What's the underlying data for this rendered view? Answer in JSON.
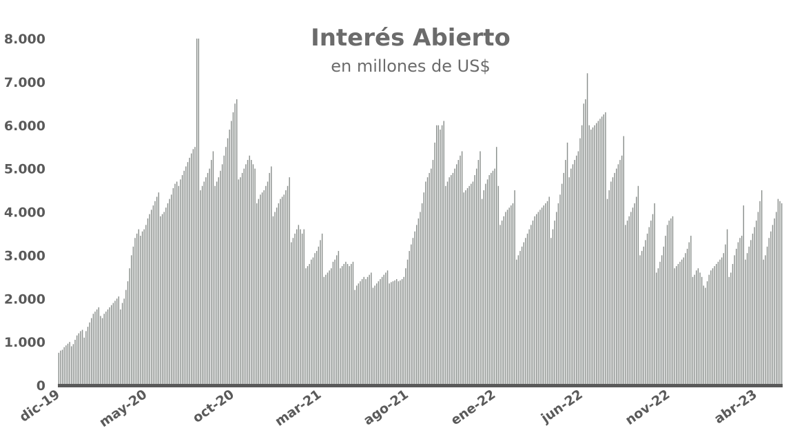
{
  "chart_data": {
    "type": "bar",
    "title": "Interés Abierto",
    "subtitle": "en millones de US$",
    "xlabel": "",
    "ylabel": "",
    "ylim": [
      0,
      8000
    ],
    "grid": false,
    "legend": "none",
    "bar_color": "#8a8f8c",
    "axis_color": "#595959",
    "text_color": "#6b6b6b",
    "y_ticks": [
      {
        "value": 0,
        "label": "0"
      },
      {
        "value": 1000,
        "label": "1.000"
      },
      {
        "value": 2000,
        "label": "2.000"
      },
      {
        "value": 3000,
        "label": "3.000"
      },
      {
        "value": 4000,
        "label": "4.000"
      },
      {
        "value": 5000,
        "label": "5.000"
      },
      {
        "value": 6000,
        "label": "6.000"
      },
      {
        "value": 7000,
        "label": "7.000"
      },
      {
        "value": 8000,
        "label": "8.000"
      }
    ],
    "x_tick_labels": [
      "dic-19",
      "may-20",
      "oct-20",
      "mar-21",
      "ago-21",
      "ene-22",
      "jun-22",
      "nov-22",
      "abr-23"
    ],
    "series": [
      {
        "values": [
          750,
          800,
          820,
          880,
          920,
          960,
          1000,
          900,
          950,
          1050,
          1150,
          1200,
          1250,
          1280,
          1100,
          1250,
          1350,
          1450,
          1550,
          1650,
          1700,
          1750,
          1800,
          1600,
          1550,
          1650,
          1700,
          1750,
          1800,
          1850,
          1900,
          1950,
          2000,
          2050,
          1750,
          1900,
          2000,
          2200,
          2400,
          2700,
          3000,
          3200,
          3400,
          3500,
          3600,
          3450,
          3550,
          3600,
          3700,
          3850,
          3950,
          4050,
          4150,
          4250,
          4350,
          4450,
          3900,
          3950,
          4000,
          4100,
          4200,
          4300,
          4400,
          4550,
          4650,
          4700,
          4600,
          4750,
          4850,
          4950,
          5050,
          5150,
          5250,
          5350,
          5450,
          5500,
          8000,
          8000,
          4500,
          4600,
          4700,
          4800,
          4900,
          5000,
          5200,
          5400,
          4600,
          4700,
          4800,
          4950,
          5100,
          5300,
          5500,
          5700,
          5900,
          6100,
          6300,
          6500,
          6600,
          4750,
          4800,
          4900,
          5000,
          5100,
          5200,
          5300,
          5200,
          5100,
          5000,
          4200,
          4300,
          4400,
          4450,
          4500,
          4600,
          4700,
          4900,
          5050,
          3900,
          4000,
          4100,
          4200,
          4300,
          4350,
          4400,
          4500,
          4600,
          4800,
          3300,
          3400,
          3500,
          3600,
          3700,
          3600,
          3500,
          3600,
          2700,
          2750,
          2800,
          2900,
          2950,
          3050,
          3100,
          3200,
          3350,
          3500,
          2500,
          2550,
          2600,
          2650,
          2700,
          2850,
          2900,
          3000,
          3100,
          2700,
          2750,
          2800,
          2850,
          2800,
          2750,
          2800,
          2850,
          2200,
          2300,
          2350,
          2400,
          2450,
          2500,
          2450,
          2500,
          2550,
          2600,
          2250,
          2300,
          2350,
          2400,
          2450,
          2500,
          2550,
          2600,
          2650,
          2350,
          2380,
          2400,
          2420,
          2450,
          2400,
          2420,
          2450,
          2500,
          2700,
          2900,
          3100,
          3250,
          3400,
          3550,
          3700,
          3850,
          4000,
          4200,
          4450,
          4700,
          4800,
          4900,
          5000,
          5200,
          5600,
          6000,
          6000,
          5900,
          6000,
          6100,
          4600,
          4700,
          4800,
          4850,
          4900,
          5000,
          5100,
          5200,
          5300,
          5400,
          4450,
          4500,
          4550,
          4600,
          4650,
          4700,
          4850,
          5000,
          5200,
          5400,
          4300,
          4500,
          4650,
          4750,
          4850,
          4900,
          4950,
          5000,
          5500,
          4600,
          3700,
          3800,
          3900,
          4000,
          4050,
          4100,
          4150,
          4200,
          4500,
          2900,
          3000,
          3100,
          3200,
          3300,
          3400,
          3500,
          3600,
          3700,
          3800,
          3900,
          3950,
          4000,
          4050,
          4100,
          4150,
          4200,
          4250,
          4350,
          3400,
          3600,
          3800,
          4000,
          4200,
          4400,
          4650,
          4900,
          5200,
          5600,
          4800,
          5000,
          5100,
          5200,
          5300,
          5400,
          5700,
          6000,
          6500,
          6600,
          7200,
          6000,
          5900,
          5950,
          6000,
          6050,
          6100,
          6150,
          6200,
          6250,
          6300,
          4300,
          4500,
          4700,
          4800,
          4900,
          5000,
          5100,
          5200,
          5300,
          5750,
          3700,
          3800,
          3900,
          4000,
          4100,
          4200,
          4350,
          4600,
          3000,
          3100,
          3200,
          3350,
          3500,
          3650,
          3800,
          3950,
          4200,
          2600,
          2700,
          2850,
          3000,
          3200,
          3450,
          3700,
          3800,
          3850,
          3900,
          2700,
          2750,
          2800,
          2850,
          2900,
          2950,
          3050,
          3150,
          3300,
          3450,
          2500,
          2550,
          2650,
          2700,
          2600,
          2500,
          2300,
          2250,
          2400,
          2550,
          2650,
          2700,
          2750,
          2800,
          2850,
          2900,
          2950,
          3050,
          3250,
          3600,
          2500,
          2600,
          2800,
          3000,
          3150,
          3300,
          3400,
          3450,
          4150,
          2900,
          3050,
          3200,
          3350,
          3500,
          3650,
          3800,
          4000,
          4250,
          4500,
          2900,
          3000,
          3200,
          3400,
          3550,
          3700,
          3850,
          4000,
          4300,
          4250,
          4200
        ]
      }
    ]
  }
}
